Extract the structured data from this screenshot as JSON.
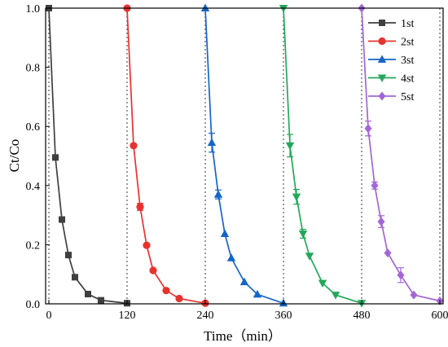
{
  "chart_data": {
    "type": "line",
    "xlabel": "Time（min）",
    "ylabel": "Ct/Co",
    "xlim": [
      -5,
      605
    ],
    "ylim": [
      0,
      1.0
    ],
    "xticks": [
      0,
      120,
      240,
      360,
      480,
      600
    ],
    "yticks": [
      0.0,
      0.2,
      0.4,
      0.6,
      0.8,
      1.0
    ],
    "xtick_labels": [
      "0",
      "120",
      "240",
      "360",
      "480",
      "600"
    ],
    "ytick_labels": [
      "0.0",
      "0.2",
      "0.4",
      "0.6",
      "0.8",
      "1.0"
    ],
    "cycle_boundaries": [
      0,
      120,
      240,
      360,
      480,
      600
    ],
    "legend_position": "top-right",
    "grid": false,
    "series": [
      {
        "name": "1st",
        "color": "#3f3f3f",
        "marker": "square",
        "x": [
          0,
          10,
          20,
          30,
          40,
          60,
          80,
          120
        ],
        "y": [
          1.0,
          0.495,
          0.285,
          0.165,
          0.09,
          0.033,
          0.012,
          0.002
        ],
        "err": [
          0,
          0,
          0,
          0,
          0,
          0,
          0,
          0
        ]
      },
      {
        "name": "2st",
        "color": "#e8322f",
        "marker": "circle",
        "x": [
          120,
          130,
          140,
          150,
          160,
          180,
          200,
          240
        ],
        "y": [
          1.0,
          0.535,
          0.328,
          0.198,
          0.113,
          0.045,
          0.018,
          0.002
        ],
        "err": [
          0,
          0,
          0.012,
          0,
          0,
          0,
          0,
          0
        ]
      },
      {
        "name": "3st",
        "color": "#1565c9",
        "marker": "triangle-up",
        "x": [
          240,
          250,
          260,
          270,
          280,
          300,
          320,
          360
        ],
        "y": [
          1.0,
          0.545,
          0.37,
          0.237,
          0.155,
          0.074,
          0.032,
          0.002
        ],
        "err": [
          0,
          0.032,
          0.015,
          0,
          0,
          0,
          0,
          0
        ]
      },
      {
        "name": "4st",
        "color": "#22a85a",
        "marker": "triangle-down",
        "x": [
          360,
          370,
          380,
          390,
          400,
          420,
          440,
          480
        ],
        "y": [
          1.0,
          0.535,
          0.362,
          0.237,
          0.162,
          0.07,
          0.03,
          0.002
        ],
        "err": [
          0,
          0.038,
          0.025,
          0.015,
          0,
          0,
          0,
          0
        ]
      },
      {
        "name": "5st",
        "color": "#a366d6",
        "marker": "diamond",
        "x": [
          480,
          490,
          500,
          510,
          520,
          540,
          560,
          600
        ],
        "y": [
          1.0,
          0.593,
          0.4,
          0.278,
          0.172,
          0.097,
          0.03,
          0.01
        ],
        "err": [
          0,
          0.025,
          0.012,
          0.02,
          0,
          0.025,
          0,
          0
        ]
      }
    ]
  }
}
